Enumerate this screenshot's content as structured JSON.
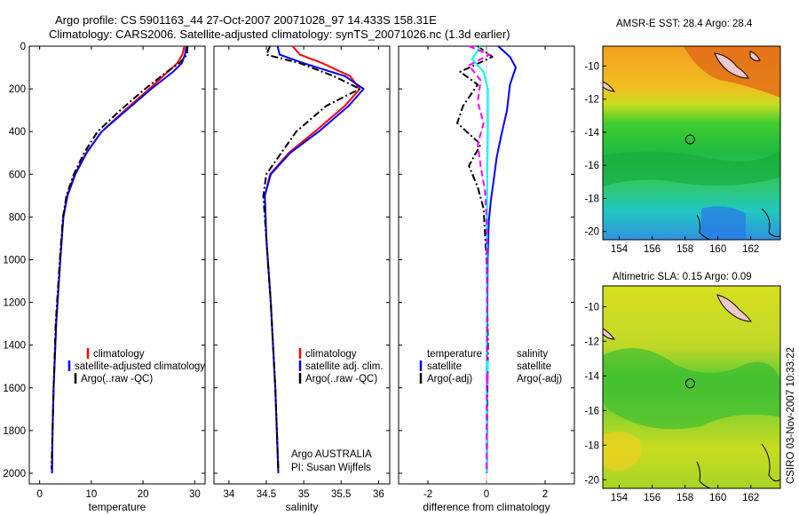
{
  "header": {
    "line1": "Argo profile: CS 5901163_44 27-Oct-2007 20071028_97 14.433S 158.31E",
    "line2": "Climatology: CARS2006. Satellite-adjusted climatology: synTS_20071026.nc (1.3d earlier)"
  },
  "side_label": "CSIRO 03-Nov-2007 10:33:22",
  "colors": {
    "climatology": "#ff0000",
    "satellite": "#0000ff",
    "argo": "#000000",
    "salinity_sat": "#00ffff",
    "salinity_argo": "#ff00ff"
  },
  "chart_data": [
    {
      "type": "line",
      "id": "temperature",
      "xlabel": "temperature",
      "xlim": [
        -2,
        32
      ],
      "ylim": [
        0,
        2050
      ],
      "xticks": [
        "0",
        "10",
        "20",
        "30"
      ],
      "yticks": [
        "0",
        "200",
        "400",
        "600",
        "800",
        "1000",
        "1200",
        "1400",
        "1600",
        "1800",
        "2000"
      ],
      "legend": [
        "climatology",
        "satellite-adjusted climatology",
        "Argo(..raw -QC)"
      ],
      "series": [
        {
          "name": "climatology",
          "x": [
            28.0,
            27.6,
            26.6,
            24.8,
            21.2,
            16.5,
            12.0,
            9.0,
            6.8,
            5.3,
            4.6,
            4.0,
            3.2,
            2.7,
            2.5,
            2.4
          ],
          "y": [
            0,
            40,
            80,
            120,
            200,
            300,
            400,
            500,
            600,
            700,
            800,
            1000,
            1300,
            1600,
            1800,
            2000
          ]
        },
        {
          "name": "satellite-adjusted climatology",
          "x": [
            28.4,
            28.1,
            27.5,
            25.8,
            21.6,
            16.8,
            12.0,
            9.1,
            6.9,
            5.4,
            4.6,
            4.0,
            3.2,
            2.7,
            2.5,
            2.4
          ],
          "y": [
            0,
            40,
            80,
            120,
            200,
            300,
            400,
            500,
            600,
            700,
            800,
            1000,
            1300,
            1600,
            1800,
            2000
          ]
        },
        {
          "name": "Argo(..raw -QC)",
          "x": [
            28.6,
            28.5,
            27.0,
            24.6,
            20.4,
            15.6,
            11.2,
            8.6,
            6.6,
            5.2,
            4.5,
            3.9,
            3.1,
            2.7,
            2.5,
            2.3
          ],
          "y": [
            0,
            40,
            80,
            120,
            200,
            300,
            400,
            500,
            600,
            700,
            800,
            1000,
            1300,
            1600,
            1800,
            1980
          ]
        }
      ]
    },
    {
      "type": "line",
      "id": "salinity",
      "xlabel": "salinity",
      "xlim": [
        33.8,
        36.15
      ],
      "ylim": [
        0,
        2050
      ],
      "xticks": [
        "34",
        "34.5",
        "35",
        "35.5",
        "36"
      ],
      "legend": [
        "climatology",
        "satellite adj. clim.",
        "Argo(..raw -QC)"
      ],
      "annotation": [
        "Argo AUSTRALIA",
        "PI: Susan Wijffels"
      ],
      "series": [
        {
          "name": "climatology",
          "x": [
            34.85,
            34.95,
            35.25,
            35.62,
            35.75,
            35.55,
            35.15,
            34.8,
            34.55,
            34.48,
            34.5,
            34.56,
            34.62,
            34.66
          ],
          "y": [
            0,
            40,
            80,
            140,
            200,
            280,
            400,
            500,
            600,
            700,
            900,
            1200,
            1600,
            2000
          ]
        },
        {
          "name": "satellite adj. clim.",
          "x": [
            34.65,
            34.68,
            35.0,
            35.55,
            35.8,
            35.6,
            35.2,
            34.82,
            34.56,
            34.48,
            34.5,
            34.56,
            34.62,
            34.66
          ],
          "y": [
            0,
            40,
            80,
            140,
            200,
            280,
            400,
            500,
            600,
            700,
            900,
            1200,
            1600,
            2000
          ]
        },
        {
          "name": "Argo(..raw -QC)",
          "x": [
            34.55,
            34.5,
            34.95,
            35.4,
            35.75,
            35.3,
            34.9,
            34.7,
            34.5,
            34.46,
            34.5,
            34.56,
            34.62,
            34.66
          ],
          "y": [
            0,
            40,
            80,
            140,
            200,
            280,
            400,
            500,
            600,
            700,
            900,
            1200,
            1600,
            1980
          ]
        }
      ]
    },
    {
      "type": "line",
      "id": "difference",
      "xlabel": "difference from climatology",
      "xlim": [
        -3,
        3
      ],
      "ylim": [
        0,
        2050
      ],
      "xticks": [
        "-2",
        "0",
        "2"
      ],
      "legend_temperature": [
        "temperature",
        "satellite",
        "Argo(-adj)"
      ],
      "legend_salinity": [
        "salinity",
        "satellite",
        "Argo(-adj)"
      ],
      "series": [
        {
          "name": "temperature satellite",
          "x": [
            0.4,
            0.8,
            1.0,
            0.8,
            0.7,
            0.5,
            0.35,
            0.25,
            0.15,
            0.08,
            0.04,
            0.02,
            0.01
          ],
          "y": [
            0,
            50,
            100,
            180,
            300,
            420,
            520,
            620,
            720,
            820,
            1000,
            1400,
            2000
          ]
        },
        {
          "name": "temperature Argo(-adj)",
          "x": [
            -0.3,
            0.2,
            -0.9,
            -0.3,
            -0.8,
            -1.0,
            -0.2,
            -0.6,
            -0.3,
            -0.1,
            0.0,
            0.05,
            0.0
          ],
          "y": [
            0,
            50,
            120,
            180,
            280,
            360,
            460,
            560,
            660,
            760,
            1000,
            1400,
            2000
          ]
        },
        {
          "name": "salinity satellite",
          "x": [
            -0.2,
            -0.5,
            -0.1,
            0.05,
            0.05,
            0.05,
            0.03,
            0.02,
            0.01,
            0.0
          ],
          "y": [
            0,
            60,
            120,
            200,
            300,
            420,
            560,
            720,
            1200,
            2000
          ]
        },
        {
          "name": "salinity Argo(-adj)",
          "x": [
            -0.6,
            0.1,
            -0.6,
            -0.2,
            -0.3,
            -0.1,
            -0.3,
            -0.2,
            -0.05,
            0.0,
            0.02,
            0.0
          ],
          "y": [
            0,
            40,
            90,
            160,
            260,
            360,
            460,
            560,
            680,
            800,
            1200,
            2000
          ]
        }
      ]
    },
    {
      "type": "heatmap",
      "id": "sst_map",
      "title": "AMSR-E SST: 28.4  Argo: 28.4",
      "xlim": [
        153,
        163.8
      ],
      "ylim": [
        -20.5,
        -8.8
      ],
      "xticks": [
        "154",
        "156",
        "158",
        "160",
        "162"
      ],
      "yticks": [
        "-10",
        "-12",
        "-14",
        "-16",
        "-18",
        "-20"
      ],
      "marker": [
        158.31,
        -14.433
      ]
    },
    {
      "type": "heatmap",
      "id": "sla_map",
      "title": "Altimetric SLA: 0.15  Argo: 0.09",
      "xlim": [
        153,
        163.8
      ],
      "ylim": [
        -20.5,
        -8.8
      ],
      "xticks": [
        "154",
        "156",
        "158",
        "160",
        "162"
      ],
      "yticks": [
        "-10",
        "-12",
        "-14",
        "-16",
        "-18",
        "-20"
      ],
      "marker": [
        158.31,
        -14.433
      ]
    }
  ]
}
